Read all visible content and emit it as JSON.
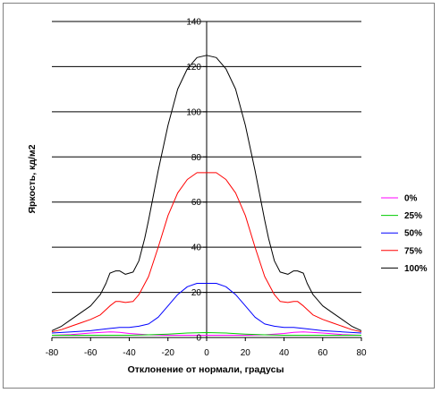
{
  "chart_data": {
    "type": "line",
    "xlabel": "Отклонение от нормали, градусы",
    "ylabel": "Яркость, кд/м2",
    "xlim": [
      -80,
      80
    ],
    "ylim": [
      0,
      140
    ],
    "x_ticks": [
      -80,
      -60,
      -40,
      -20,
      0,
      20,
      40,
      60,
      80
    ],
    "y_ticks": [
      0,
      20,
      40,
      60,
      80,
      100,
      120,
      140
    ],
    "grid": "horizontal major gridlines",
    "legend_position": "right",
    "series": [
      {
        "name": "0%",
        "color": "#ff00ff",
        "points": [
          [
            -80,
            1
          ],
          [
            -70,
            1.3
          ],
          [
            -60,
            2
          ],
          [
            -50,
            2.5
          ],
          [
            -45,
            2.3
          ],
          [
            -40,
            1.8
          ],
          [
            -30,
            1.2
          ],
          [
            -20,
            1
          ],
          [
            -10,
            1
          ],
          [
            0,
            1
          ],
          [
            10,
            1
          ],
          [
            20,
            1
          ],
          [
            30,
            1.2
          ],
          [
            40,
            1.8
          ],
          [
            45,
            2.3
          ],
          [
            50,
            2.5
          ],
          [
            60,
            2
          ],
          [
            70,
            1.3
          ],
          [
            80,
            1
          ]
        ]
      },
      {
        "name": "25%",
        "color": "#00cc00",
        "points": [
          [
            -80,
            1
          ],
          [
            -60,
            1
          ],
          [
            -40,
            1
          ],
          [
            -30,
            1.2
          ],
          [
            -20,
            1.5
          ],
          [
            -10,
            2
          ],
          [
            0,
            2.2
          ],
          [
            10,
            2
          ],
          [
            20,
            1.5
          ],
          [
            30,
            1.2
          ],
          [
            40,
            1
          ],
          [
            60,
            1
          ],
          [
            80,
            1
          ]
        ]
      },
      {
        "name": "50%",
        "color": "#0000ff",
        "points": [
          [
            -80,
            2
          ],
          [
            -70,
            2.5
          ],
          [
            -60,
            3
          ],
          [
            -50,
            4
          ],
          [
            -45,
            4.5
          ],
          [
            -40,
            4.5
          ],
          [
            -35,
            5
          ],
          [
            -30,
            6
          ],
          [
            -25,
            9
          ],
          [
            -20,
            14
          ],
          [
            -15,
            19
          ],
          [
            -10,
            22.5
          ],
          [
            -5,
            24
          ],
          [
            0,
            24
          ],
          [
            5,
            24
          ],
          [
            10,
            22.5
          ],
          [
            15,
            19
          ],
          [
            20,
            14
          ],
          [
            25,
            9
          ],
          [
            30,
            6
          ],
          [
            35,
            5
          ],
          [
            40,
            4.5
          ],
          [
            45,
            4.5
          ],
          [
            50,
            4
          ],
          [
            60,
            3
          ],
          [
            70,
            2.5
          ],
          [
            80,
            2
          ]
        ]
      },
      {
        "name": "75%",
        "color": "#ff0000",
        "points": [
          [
            -80,
            2.5
          ],
          [
            -75,
            3.5
          ],
          [
            -70,
            5
          ],
          [
            -65,
            6.5
          ],
          [
            -60,
            8
          ],
          [
            -55,
            10
          ],
          [
            -50,
            14
          ],
          [
            -47,
            16
          ],
          [
            -45,
            16
          ],
          [
            -42,
            15.5
          ],
          [
            -38,
            16
          ],
          [
            -35,
            19
          ],
          [
            -30,
            27
          ],
          [
            -25,
            40
          ],
          [
            -20,
            54
          ],
          [
            -15,
            64
          ],
          [
            -10,
            70
          ],
          [
            -5,
            73
          ],
          [
            0,
            73
          ],
          [
            5,
            73
          ],
          [
            10,
            70
          ],
          [
            15,
            64
          ],
          [
            20,
            54
          ],
          [
            25,
            40
          ],
          [
            30,
            27
          ],
          [
            35,
            19
          ],
          [
            38,
            16
          ],
          [
            42,
            15.5
          ],
          [
            45,
            16
          ],
          [
            47,
            16
          ],
          [
            50,
            14
          ],
          [
            55,
            10
          ],
          [
            60,
            8
          ],
          [
            65,
            6.5
          ],
          [
            70,
            5
          ],
          [
            75,
            3.5
          ],
          [
            80,
            2.5
          ]
        ]
      },
      {
        "name": "100%",
        "color": "#000000",
        "points": [
          [
            -80,
            3
          ],
          [
            -75,
            5
          ],
          [
            -70,
            8
          ],
          [
            -65,
            11
          ],
          [
            -60,
            14
          ],
          [
            -55,
            19
          ],
          [
            -52,
            24
          ],
          [
            -50,
            28.5
          ],
          [
            -47,
            29.5
          ],
          [
            -45,
            29.5
          ],
          [
            -42,
            28
          ],
          [
            -38,
            29
          ],
          [
            -35,
            34
          ],
          [
            -32,
            44
          ],
          [
            -30,
            52
          ],
          [
            -25,
            74
          ],
          [
            -20,
            94
          ],
          [
            -15,
            110
          ],
          [
            -10,
            119
          ],
          [
            -5,
            124
          ],
          [
            0,
            125
          ],
          [
            5,
            124
          ],
          [
            10,
            119
          ],
          [
            15,
            110
          ],
          [
            20,
            94
          ],
          [
            25,
            74
          ],
          [
            30,
            52
          ],
          [
            32,
            44
          ],
          [
            35,
            34
          ],
          [
            38,
            29
          ],
          [
            42,
            28
          ],
          [
            45,
            29.5
          ],
          [
            47,
            29.5
          ],
          [
            50,
            28.5
          ],
          [
            52,
            24
          ],
          [
            55,
            19
          ],
          [
            60,
            14
          ],
          [
            65,
            11
          ],
          [
            70,
            8
          ],
          [
            75,
            5
          ],
          [
            80,
            3
          ]
        ]
      }
    ]
  }
}
